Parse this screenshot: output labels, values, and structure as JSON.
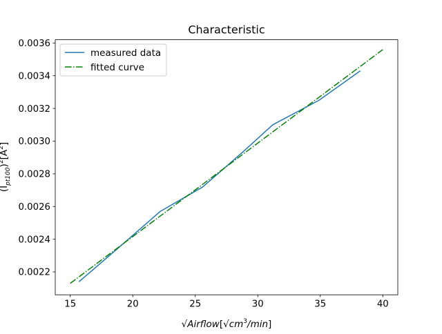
{
  "chart_data": {
    "type": "line",
    "title": "Characteristic",
    "xlabel_parts": {
      "radical": "√",
      "var": "Airflow",
      "unit_bracket_open": "[",
      "unit_radical": "√",
      "unit_var": "cm",
      "unit_exp": "3",
      "unit_rest": "/min",
      "unit_bracket_close": "]"
    },
    "ylabel_parts": {
      "prefix": "(I",
      "sub": "pt100",
      "suffix_open": ")",
      "exp": "2",
      "unit_bracket_open": "[A",
      "unit_exp": "2",
      "unit_bracket_close": "]"
    },
    "xlim": [
      13.8,
      41.2
    ],
    "ylim": [
      0.00206,
      0.00362
    ],
    "xticks": [
      15,
      20,
      25,
      30,
      35,
      40
    ],
    "xtick_labels": [
      "15",
      "20",
      "25",
      "30",
      "35",
      "40"
    ],
    "yticks": [
      0.0022,
      0.0024,
      0.0026,
      0.0028,
      0.003,
      0.0032,
      0.0034,
      0.0036
    ],
    "ytick_labels": [
      "0.0022",
      "0.0024",
      "0.0026",
      "0.0028",
      "0.0030",
      "0.0032",
      "0.0034",
      "0.0036"
    ],
    "grid": false,
    "legend_position": "top-left",
    "series": [
      {
        "name": "measured data",
        "color": "#1f77b4",
        "style": "solid",
        "x": [
          15.7,
          18.9,
          22.2,
          25.6,
          27.1,
          28.9,
          31.2,
          34.9,
          38.2
        ],
        "y": [
          0.00214,
          0.00235,
          0.00257,
          0.00272,
          0.00282,
          0.00294,
          0.0031,
          0.00325,
          0.00343
        ]
      },
      {
        "name": "fitted curve",
        "color": "#008000",
        "style": "dashdot",
        "x": [
          15,
          40
        ],
        "y": [
          0.00213,
          0.00356
        ]
      }
    ]
  }
}
